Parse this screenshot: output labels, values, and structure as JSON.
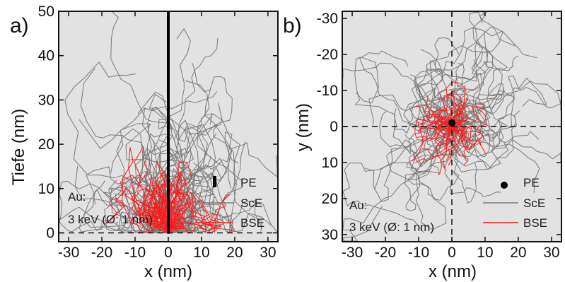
{
  "colors": {
    "background": "#e2e2e2",
    "sce": "#7a7a7a",
    "bse": "#ff1a1a",
    "pe": "#000000"
  },
  "chart_data": [
    {
      "type": "line",
      "panel_label": "a)",
      "xlabel": "x (nm)",
      "ylabel": "Tiefe (nm)",
      "xlim": [
        -33,
        33
      ],
      "ylim": [
        50,
        -2
      ],
      "y_inverted": true,
      "xticks": [
        -30,
        -20,
        -10,
        0,
        10,
        20,
        30
      ],
      "yticks": [
        0,
        10,
        20,
        30,
        40,
        50
      ],
      "reference_lines": [
        {
          "orientation": "horizontal",
          "value": 0,
          "style": "dashed"
        }
      ],
      "annotation": [
        "Au:",
        "3 keV (Ø: 1 nm)"
      ],
      "legend": {
        "position": "bottom-right",
        "entries": [
          "PE",
          "ScE",
          "BSE"
        ]
      },
      "series": [
        {
          "name": "PE",
          "marker": "vertical-bar",
          "points": [
            [
              0,
              -3
            ],
            [
              0,
              -0.2
            ]
          ]
        },
        {
          "name": "ScE",
          "description_values": {
            "x_range": [
              -14,
              24
            ],
            "y_range": [
              -1,
              43
            ]
          }
        },
        {
          "name": "BSE",
          "description_values": {
            "x_range": [
              -8,
              13
            ],
            "y_range": [
              0,
              20
            ]
          }
        }
      ]
    },
    {
      "type": "line",
      "panel_label": "b)",
      "xlabel": "x (nm)",
      "ylabel": "y (nm)",
      "xlim": [
        -33,
        33
      ],
      "ylim": [
        -32,
        32
      ],
      "xticks": [
        -30,
        -20,
        -10,
        0,
        10,
        20,
        30
      ],
      "yticks": [
        -30,
        -20,
        -10,
        0,
        10,
        20,
        30
      ],
      "reference_lines": [
        {
          "orientation": "horizontal",
          "value": 0,
          "style": "dashed"
        },
        {
          "orientation": "vertical",
          "value": 0,
          "style": "dashed"
        }
      ],
      "annotation": [
        "Au:",
        "3 keV (Ø: 1 nm)"
      ],
      "legend": {
        "position": "bottom-right",
        "entries": [
          "PE",
          "ScE",
          "BSE"
        ]
      },
      "series": [
        {
          "name": "PE",
          "marker": "dot",
          "points": [
            [
              0,
              -1
            ]
          ]
        },
        {
          "name": "ScE",
          "description_values": {
            "x_range": [
              -22,
              25
            ],
            "y_range": [
              -24,
              25
            ]
          }
        },
        {
          "name": "BSE",
          "description_values": {
            "x_range": [
              -10,
              12
            ],
            "y_range": [
              -15,
              12
            ]
          }
        }
      ]
    }
  ]
}
